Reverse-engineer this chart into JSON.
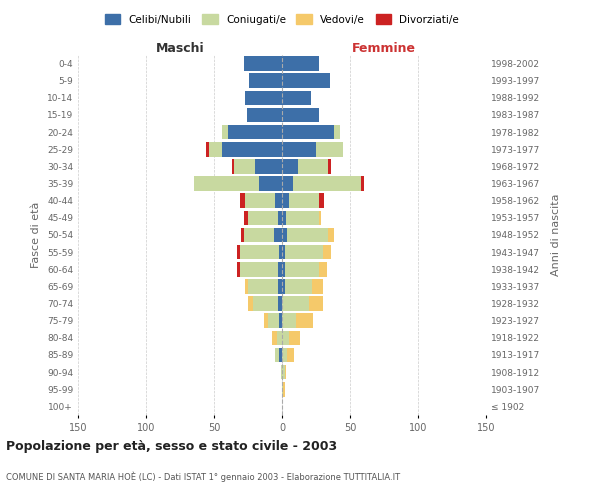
{
  "age_groups": [
    "100+",
    "95-99",
    "90-94",
    "85-89",
    "80-84",
    "75-79",
    "70-74",
    "65-69",
    "60-64",
    "55-59",
    "50-54",
    "45-49",
    "40-44",
    "35-39",
    "30-34",
    "25-29",
    "20-24",
    "15-19",
    "10-14",
    "5-9",
    "0-4"
  ],
  "birth_years": [
    "≤ 1902",
    "1903-1907",
    "1908-1912",
    "1913-1917",
    "1918-1922",
    "1923-1927",
    "1928-1932",
    "1933-1937",
    "1938-1942",
    "1943-1947",
    "1948-1952",
    "1953-1957",
    "1958-1962",
    "1963-1967",
    "1968-1972",
    "1973-1977",
    "1978-1982",
    "1983-1987",
    "1988-1992",
    "1993-1997",
    "1998-2002"
  ],
  "males_celibi": [
    0,
    0,
    0,
    2,
    0,
    2,
    3,
    3,
    3,
    2,
    6,
    3,
    5,
    17,
    20,
    44,
    40,
    26,
    27,
    24,
    28
  ],
  "males_coniugati": [
    0,
    0,
    1,
    3,
    4,
    8,
    18,
    22,
    28,
    29,
    22,
    22,
    22,
    48,
    15,
    10,
    4,
    0,
    0,
    0,
    0
  ],
  "males_vedovi": [
    0,
    0,
    0,
    0,
    3,
    3,
    4,
    2,
    0,
    0,
    0,
    0,
    0,
    0,
    0,
    0,
    0,
    0,
    0,
    0,
    0
  ],
  "males_divorziati": [
    0,
    0,
    0,
    0,
    0,
    0,
    0,
    0,
    2,
    2,
    2,
    3,
    4,
    0,
    2,
    2,
    0,
    0,
    0,
    0,
    0
  ],
  "females_celibi": [
    0,
    0,
    0,
    0,
    0,
    0,
    0,
    2,
    2,
    2,
    4,
    3,
    5,
    8,
    12,
    25,
    38,
    27,
    21,
    35,
    27
  ],
  "females_coniugati": [
    0,
    1,
    2,
    4,
    5,
    10,
    20,
    20,
    25,
    28,
    30,
    24,
    22,
    50,
    22,
    20,
    5,
    0,
    0,
    0,
    0
  ],
  "females_vedovi": [
    0,
    1,
    1,
    5,
    8,
    13,
    10,
    8,
    6,
    6,
    4,
    2,
    0,
    0,
    0,
    0,
    0,
    0,
    0,
    0,
    0
  ],
  "females_divorziati": [
    0,
    0,
    0,
    0,
    0,
    0,
    0,
    0,
    0,
    0,
    0,
    0,
    4,
    2,
    2,
    0,
    0,
    0,
    0,
    0,
    0
  ],
  "colors": {
    "celibi": "#3d6fa8",
    "coniugati": "#c8d9a0",
    "vedovi": "#f5c96a",
    "divorziati": "#cc2222"
  },
  "legend_labels": [
    "Celibi/Nubili",
    "Coniugati/e",
    "Vedovi/e",
    "Divorziati/e"
  ],
  "title": "Popolazione per età, sesso e stato civile - 2003",
  "subtitle": "COMUNE DI SANTA MARIA HOÈ (LC) - Dati ISTAT 1° gennaio 2003 - Elaborazione TUTTITALIA.IT",
  "ylabel_left": "Fasce di età",
  "ylabel_right": "Anni di nascita",
  "xlabel_left": "Maschi",
  "xlabel_right": "Femmine",
  "xlim": 150,
  "background_color": "#ffffff",
  "grid_color": "#cccccc"
}
